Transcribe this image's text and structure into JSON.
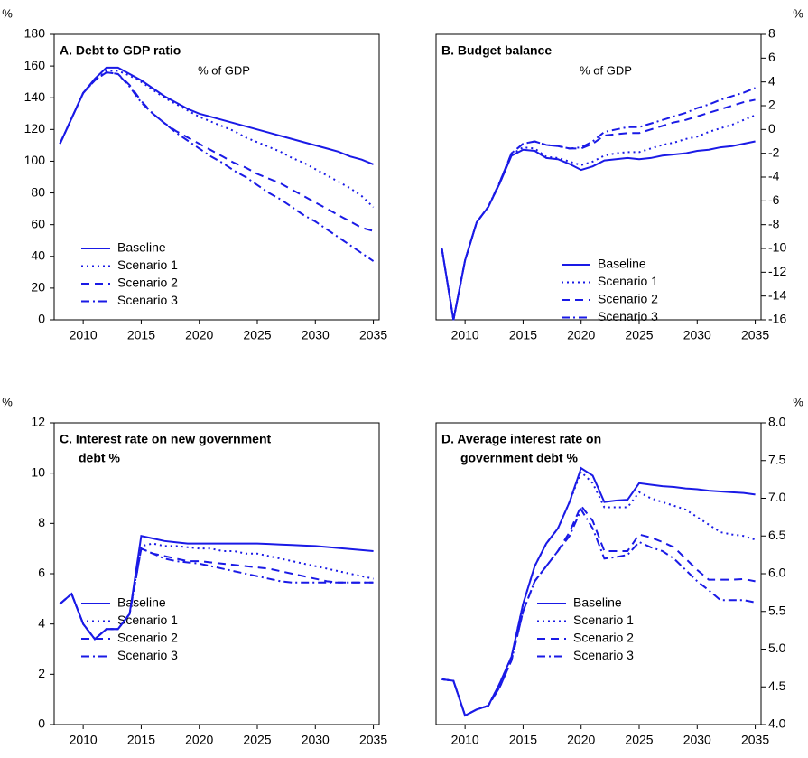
{
  "chart_data": [
    {
      "type": "line",
      "title": [
        "A. Debt to GDP ratio"
      ],
      "subtitle": "% of GDP",
      "y_label": "%",
      "y_axis_side": "left",
      "legend_position": "lower left",
      "x": [
        2008,
        2009,
        2010,
        2011,
        2012,
        2013,
        2014,
        2015,
        2016,
        2017,
        2018,
        2019,
        2020,
        2021,
        2022,
        2023,
        2024,
        2025,
        2026,
        2027,
        2028,
        2029,
        2030,
        2031,
        2032,
        2033,
        2034,
        2035
      ],
      "xlim": [
        2007.5,
        2035.5
      ],
      "xticks": [
        2010,
        2015,
        2020,
        2025,
        2030,
        2035
      ],
      "ylim": [
        0,
        180
      ],
      "yticks": [
        0,
        20,
        40,
        60,
        80,
        100,
        120,
        140,
        160,
        180
      ],
      "series": [
        {
          "name": "Baseline",
          "color": "#1a1ae6",
          "dash": "solid",
          "values": [
            111,
            127,
            143,
            152,
            159,
            159,
            155,
            151,
            146,
            141,
            137,
            133,
            130,
            128,
            126,
            124,
            122,
            120,
            118,
            116,
            114,
            112,
            110,
            108,
            106,
            103,
            101,
            98
          ]
        },
        {
          "name": "Scenario 1",
          "color": "#1a1ae6",
          "dash": "dotted",
          "values": [
            111,
            127,
            143,
            151,
            157,
            157,
            154,
            150,
            145,
            140,
            136,
            132,
            128,
            125,
            122,
            119,
            115,
            112,
            109,
            106,
            102,
            99,
            95,
            91,
            87,
            83,
            78,
            71
          ]
        },
        {
          "name": "Scenario 2",
          "color": "#1a1ae6",
          "dash": "dashed",
          "values": [
            111,
            127,
            143,
            151,
            156,
            155,
            148,
            138,
            130,
            124,
            119,
            115,
            111,
            107,
            103,
            99,
            96,
            92,
            89,
            86,
            82,
            78,
            74,
            70,
            66,
            62,
            58,
            56
          ]
        },
        {
          "name": "Scenario 3",
          "color": "#1a1ae6",
          "dash": "dashdot",
          "values": [
            111,
            127,
            143,
            151,
            156,
            155,
            147,
            137,
            130,
            124,
            118,
            113,
            108,
            103,
            99,
            94,
            90,
            85,
            80,
            76,
            71,
            66,
            62,
            57,
            52,
            47,
            42,
            37
          ]
        }
      ]
    },
    {
      "type": "line",
      "title": [
        "B. Budget balance"
      ],
      "subtitle": "% of GDP",
      "y_label": "%",
      "y_axis_side": "right",
      "legend_position": "lower right",
      "x": [
        2008,
        2009,
        2010,
        2011,
        2012,
        2013,
        2014,
        2015,
        2016,
        2017,
        2018,
        2019,
        2020,
        2021,
        2022,
        2023,
        2024,
        2025,
        2026,
        2027,
        2028,
        2029,
        2030,
        2031,
        2032,
        2033,
        2034,
        2035
      ],
      "xlim": [
        2007.5,
        2035.5
      ],
      "xticks": [
        2010,
        2015,
        2020,
        2025,
        2030,
        2035
      ],
      "ylim": [
        -16,
        8
      ],
      "yticks": [
        -16,
        -14,
        -12,
        -10,
        -8,
        -6,
        -4,
        -2,
        0,
        2,
        4,
        6,
        8
      ],
      "series": [
        {
          "name": "Baseline",
          "color": "#1a1ae6",
          "dash": "solid",
          "values": [
            -10,
            -16,
            -11,
            -7.8,
            -6.5,
            -4.5,
            -2.2,
            -1.7,
            -1.8,
            -2.4,
            -2.5,
            -2.9,
            -3.4,
            -3.1,
            -2.6,
            -2.5,
            -2.4,
            -2.5,
            -2.4,
            -2.2,
            -2.1,
            -2.0,
            -1.8,
            -1.7,
            -1.5,
            -1.4,
            -1.2,
            -1.0
          ]
        },
        {
          "name": "Scenario 1",
          "color": "#1a1ae6",
          "dash": "dotted",
          "values": [
            -10,
            -16,
            -11,
            -7.8,
            -6.5,
            -4.5,
            -2.1,
            -1.5,
            -1.6,
            -2.3,
            -2.4,
            -2.7,
            -3.0,
            -2.7,
            -2.2,
            -2.0,
            -1.9,
            -1.9,
            -1.6,
            -1.3,
            -1.1,
            -0.8,
            -0.6,
            -0.2,
            0.1,
            0.4,
            0.8,
            1.2
          ]
        },
        {
          "name": "Scenario 2",
          "color": "#1a1ae6",
          "dash": "dashed",
          "values": [
            -10,
            -16,
            -11,
            -7.8,
            -6.5,
            -4.4,
            -2.0,
            -1.2,
            -1.0,
            -1.3,
            -1.4,
            -1.6,
            -1.6,
            -1.2,
            -0.5,
            -0.4,
            -0.3,
            -0.3,
            0.0,
            0.3,
            0.6,
            0.8,
            1.1,
            1.4,
            1.7,
            2.0,
            2.3,
            2.5
          ]
        },
        {
          "name": "Scenario 3",
          "color": "#1a1ae6",
          "dash": "dashdot",
          "values": [
            -10,
            -16,
            -11,
            -7.8,
            -6.5,
            -4.4,
            -2.0,
            -1.2,
            -1.0,
            -1.3,
            -1.4,
            -1.6,
            -1.5,
            -1.0,
            -0.2,
            0.0,
            0.2,
            0.2,
            0.5,
            0.8,
            1.1,
            1.4,
            1.8,
            2.1,
            2.5,
            2.8,
            3.1,
            3.5
          ]
        }
      ]
    },
    {
      "type": "line",
      "title": [
        "C. Interest rate on new government",
        "debt %"
      ],
      "y_label": "%",
      "y_axis_side": "left",
      "legend_position": "lower left",
      "x": [
        2008,
        2009,
        2010,
        2011,
        2012,
        2013,
        2014,
        2015,
        2016,
        2017,
        2018,
        2019,
        2020,
        2021,
        2022,
        2023,
        2024,
        2025,
        2026,
        2027,
        2028,
        2029,
        2030,
        2031,
        2032,
        2033,
        2034,
        2035
      ],
      "xlim": [
        2007.5,
        2035.5
      ],
      "xticks": [
        2010,
        2015,
        2020,
        2025,
        2030,
        2035
      ],
      "ylim": [
        0,
        12
      ],
      "yticks": [
        0,
        2,
        4,
        6,
        8,
        10,
        12
      ],
      "series": [
        {
          "name": "Baseline",
          "color": "#1a1ae6",
          "dash": "solid",
          "values": [
            4.8,
            5.2,
            4.0,
            3.4,
            3.8,
            3.8,
            4.4,
            7.5,
            7.4,
            7.3,
            7.25,
            7.2,
            7.2,
            7.2,
            7.2,
            7.2,
            7.2,
            7.2,
            7.18,
            7.16,
            7.14,
            7.12,
            7.1,
            7.06,
            7.02,
            6.98,
            6.94,
            6.9
          ]
        },
        {
          "name": "Scenario 1",
          "color": "#1a1ae6",
          "dash": "dotted",
          "values": [
            4.8,
            5.2,
            4.0,
            3.4,
            3.8,
            3.8,
            4.4,
            7.1,
            7.2,
            7.1,
            7.1,
            7.05,
            7.0,
            7.0,
            6.9,
            6.9,
            6.8,
            6.8,
            6.7,
            6.6,
            6.5,
            6.4,
            6.3,
            6.2,
            6.1,
            6.0,
            5.9,
            5.8
          ]
        },
        {
          "name": "Scenario 2",
          "color": "#1a1ae6",
          "dash": "dashed",
          "values": [
            4.8,
            5.2,
            4.0,
            3.4,
            3.8,
            3.8,
            4.4,
            7.0,
            6.8,
            6.7,
            6.6,
            6.5,
            6.5,
            6.45,
            6.4,
            6.35,
            6.3,
            6.25,
            6.2,
            6.1,
            6.0,
            5.9,
            5.8,
            5.7,
            5.65,
            5.65,
            5.65,
            5.65
          ]
        },
        {
          "name": "Scenario 3",
          "color": "#1a1ae6",
          "dash": "dashdot",
          "values": [
            4.8,
            5.2,
            4.0,
            3.4,
            3.8,
            3.8,
            4.4,
            7.0,
            6.8,
            6.6,
            6.5,
            6.45,
            6.4,
            6.3,
            6.2,
            6.1,
            6.0,
            5.9,
            5.8,
            5.7,
            5.65,
            5.65,
            5.65,
            5.65,
            5.65,
            5.65,
            5.65,
            5.65
          ]
        }
      ]
    },
    {
      "type": "line",
      "title": [
        "D. Average interest rate on",
        "government debt %"
      ],
      "y_label": "%",
      "y_axis_side": "right",
      "legend_position": "lower right",
      "x": [
        2008,
        2009,
        2010,
        2011,
        2012,
        2013,
        2014,
        2015,
        2016,
        2017,
        2018,
        2019,
        2020,
        2021,
        2022,
        2023,
        2024,
        2025,
        2026,
        2027,
        2028,
        2029,
        2030,
        2031,
        2032,
        2033,
        2034,
        2035
      ],
      "xlim": [
        2007.5,
        2035.5
      ],
      "xticks": [
        2010,
        2015,
        2020,
        2025,
        2030,
        2035
      ],
      "ylim": [
        4,
        8
      ],
      "yticks": [
        {
          "value": 4,
          "label": "4.0"
        },
        4.5,
        {
          "value": 5,
          "label": "5.0"
        },
        5.5,
        {
          "value": 6,
          "label": "6.0"
        },
        6.5,
        {
          "value": 7,
          "label": "7.0"
        },
        7.5,
        {
          "value": 8,
          "label": "8.0"
        }
      ],
      "series": [
        {
          "name": "Baseline",
          "color": "#1a1ae6",
          "dash": "solid",
          "values": [
            4.6,
            4.58,
            4.12,
            4.2,
            4.25,
            4.55,
            4.9,
            5.6,
            6.1,
            6.4,
            6.6,
            6.95,
            7.4,
            7.3,
            6.95,
            6.97,
            6.98,
            7.2,
            7.18,
            7.16,
            7.15,
            7.13,
            7.12,
            7.1,
            7.09,
            7.08,
            7.07,
            7.05
          ]
        },
        {
          "name": "Scenario 1",
          "color": "#1a1ae6",
          "dash": "dotted",
          "values": [
            4.6,
            4.58,
            4.12,
            4.2,
            4.25,
            4.55,
            4.9,
            5.6,
            6.1,
            6.4,
            6.6,
            6.95,
            7.35,
            7.2,
            6.88,
            6.88,
            6.88,
            7.08,
            7.0,
            6.95,
            6.9,
            6.85,
            6.75,
            6.65,
            6.55,
            6.52,
            6.5,
            6.45
          ]
        },
        {
          "name": "Scenario 2",
          "color": "#1a1ae6",
          "dash": "dashed",
          "values": [
            4.6,
            4.58,
            4.12,
            4.2,
            4.25,
            4.5,
            4.85,
            5.5,
            5.9,
            6.1,
            6.3,
            6.55,
            6.9,
            6.7,
            6.3,
            6.3,
            6.3,
            6.52,
            6.48,
            6.42,
            6.35,
            6.2,
            6.05,
            5.92,
            5.92,
            5.92,
            5.93,
            5.9
          ]
        },
        {
          "name": "Scenario 3",
          "color": "#1a1ae6",
          "dash": "dashdot",
          "values": [
            4.6,
            4.58,
            4.12,
            4.2,
            4.25,
            4.5,
            4.85,
            5.5,
            5.9,
            6.1,
            6.3,
            6.5,
            6.85,
            6.6,
            6.2,
            6.22,
            6.25,
            6.42,
            6.35,
            6.3,
            6.2,
            6.05,
            5.9,
            5.78,
            5.65,
            5.65,
            5.65,
            5.62
          ]
        }
      ]
    }
  ]
}
